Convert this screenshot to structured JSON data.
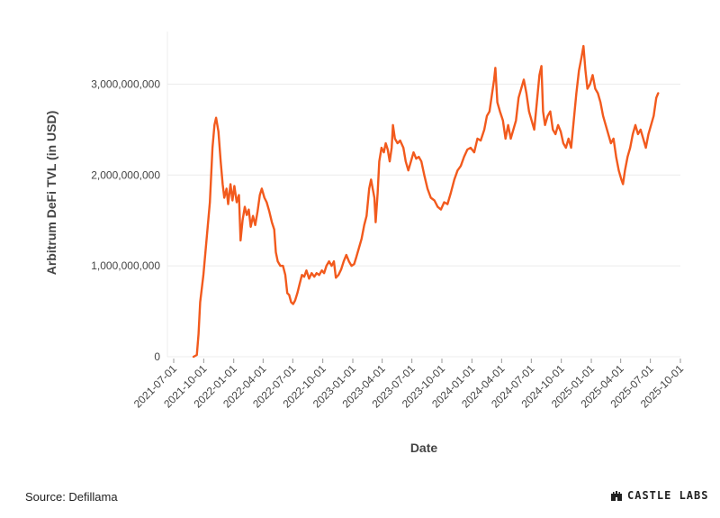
{
  "chart_data": {
    "type": "line",
    "title": "",
    "xlabel": "Date",
    "ylabel": "Arbitrum DeFi TVL (in USD)",
    "xlim": [
      "2021-07-01",
      "2025-10-01"
    ],
    "ylim": [
      0,
      3500000000
    ],
    "x_ticks": [
      "2021-07-01",
      "2021-10-01",
      "2022-01-01",
      "2022-04-01",
      "2022-07-01",
      "2022-10-01",
      "2023-01-01",
      "2023-04-01",
      "2023-07-01",
      "2023-10-01",
      "2024-01-01",
      "2024-04-01",
      "2024-07-01",
      "2024-10-01",
      "2025-01-01",
      "2025-04-01",
      "2025-07-01",
      "2025-10-01"
    ],
    "y_ticks": [
      0,
      1000000000,
      2000000000,
      3000000000
    ],
    "y_tick_labels": [
      "0",
      "1,000,000,000",
      "2,000,000,000",
      "3,000,000,000"
    ],
    "grid": true,
    "series": [
      {
        "color": "#f25a1d",
        "points": [
          [
            "2021-08-31",
            0
          ],
          [
            "2021-09-10",
            20000000
          ],
          [
            "2021-09-15",
            250000000
          ],
          [
            "2021-09-20",
            600000000
          ],
          [
            "2021-09-30",
            900000000
          ],
          [
            "2021-10-10",
            1300000000
          ],
          [
            "2021-10-20",
            1700000000
          ],
          [
            "2021-10-28",
            2300000000
          ],
          [
            "2021-11-03",
            2550000000
          ],
          [
            "2021-11-08",
            2630000000
          ],
          [
            "2021-11-15",
            2480000000
          ],
          [
            "2021-11-22",
            2150000000
          ],
          [
            "2021-11-28",
            1900000000
          ],
          [
            "2021-12-03",
            1750000000
          ],
          [
            "2021-12-10",
            1850000000
          ],
          [
            "2021-12-15",
            1680000000
          ],
          [
            "2021-12-22",
            1900000000
          ],
          [
            "2021-12-28",
            1720000000
          ],
          [
            "2022-01-03",
            1880000000
          ],
          [
            "2022-01-10",
            1700000000
          ],
          [
            "2022-01-17",
            1780000000
          ],
          [
            "2022-01-22",
            1280000000
          ],
          [
            "2022-01-28",
            1500000000
          ],
          [
            "2022-02-04",
            1650000000
          ],
          [
            "2022-02-10",
            1560000000
          ],
          [
            "2022-02-16",
            1620000000
          ],
          [
            "2022-02-22",
            1430000000
          ],
          [
            "2022-03-01",
            1550000000
          ],
          [
            "2022-03-08",
            1450000000
          ],
          [
            "2022-03-15",
            1600000000
          ],
          [
            "2022-03-22",
            1780000000
          ],
          [
            "2022-03-28",
            1850000000
          ],
          [
            "2022-04-05",
            1750000000
          ],
          [
            "2022-04-12",
            1700000000
          ],
          [
            "2022-04-20",
            1600000000
          ],
          [
            "2022-04-28",
            1480000000
          ],
          [
            "2022-05-05",
            1400000000
          ],
          [
            "2022-05-10",
            1150000000
          ],
          [
            "2022-05-16",
            1050000000
          ],
          [
            "2022-05-24",
            1000000000
          ],
          [
            "2022-06-01",
            1000000000
          ],
          [
            "2022-06-08",
            900000000
          ],
          [
            "2022-06-14",
            700000000
          ],
          [
            "2022-06-20",
            680000000
          ],
          [
            "2022-06-26",
            600000000
          ],
          [
            "2022-07-02",
            580000000
          ],
          [
            "2022-07-08",
            620000000
          ],
          [
            "2022-07-15",
            700000000
          ],
          [
            "2022-07-22",
            800000000
          ],
          [
            "2022-07-29",
            900000000
          ],
          [
            "2022-08-05",
            880000000
          ],
          [
            "2022-08-12",
            950000000
          ],
          [
            "2022-08-20",
            860000000
          ],
          [
            "2022-08-28",
            920000000
          ],
          [
            "2022-09-05",
            880000000
          ],
          [
            "2022-09-12",
            920000000
          ],
          [
            "2022-09-20",
            900000000
          ],
          [
            "2022-09-28",
            950000000
          ],
          [
            "2022-10-05",
            920000000
          ],
          [
            "2022-10-12",
            1000000000
          ],
          [
            "2022-10-20",
            1050000000
          ],
          [
            "2022-10-28",
            1000000000
          ],
          [
            "2022-11-04",
            1050000000
          ],
          [
            "2022-11-10",
            870000000
          ],
          [
            "2022-11-18",
            900000000
          ],
          [
            "2022-11-26",
            960000000
          ],
          [
            "2022-12-04",
            1050000000
          ],
          [
            "2022-12-12",
            1120000000
          ],
          [
            "2022-12-20",
            1050000000
          ],
          [
            "2022-12-28",
            1000000000
          ],
          [
            "2023-01-05",
            1020000000
          ],
          [
            "2023-01-12",
            1100000000
          ],
          [
            "2023-01-20",
            1200000000
          ],
          [
            "2023-01-28",
            1300000000
          ],
          [
            "2023-02-05",
            1450000000
          ],
          [
            "2023-02-12",
            1550000000
          ],
          [
            "2023-02-20",
            1850000000
          ],
          [
            "2023-02-26",
            1950000000
          ],
          [
            "2023-03-03",
            1850000000
          ],
          [
            "2023-03-08",
            1750000000
          ],
          [
            "2023-03-12",
            1480000000
          ],
          [
            "2023-03-18",
            1800000000
          ],
          [
            "2023-03-23",
            2150000000
          ],
          [
            "2023-03-30",
            2300000000
          ],
          [
            "2023-04-06",
            2250000000
          ],
          [
            "2023-04-12",
            2350000000
          ],
          [
            "2023-04-18",
            2280000000
          ],
          [
            "2023-04-24",
            2150000000
          ],
          [
            "2023-04-30",
            2300000000
          ],
          [
            "2023-05-04",
            2550000000
          ],
          [
            "2023-05-10",
            2400000000
          ],
          [
            "2023-05-18",
            2350000000
          ],
          [
            "2023-05-26",
            2380000000
          ],
          [
            "2023-06-05",
            2300000000
          ],
          [
            "2023-06-12",
            2150000000
          ],
          [
            "2023-06-20",
            2050000000
          ],
          [
            "2023-06-28",
            2150000000
          ],
          [
            "2023-07-06",
            2250000000
          ],
          [
            "2023-07-14",
            2180000000
          ],
          [
            "2023-07-22",
            2200000000
          ],
          [
            "2023-07-30",
            2150000000
          ],
          [
            "2023-08-08",
            2000000000
          ],
          [
            "2023-08-18",
            1850000000
          ],
          [
            "2023-08-28",
            1750000000
          ],
          [
            "2023-09-08",
            1720000000
          ],
          [
            "2023-09-18",
            1650000000
          ],
          [
            "2023-09-28",
            1620000000
          ],
          [
            "2023-10-08",
            1700000000
          ],
          [
            "2023-10-18",
            1680000000
          ],
          [
            "2023-10-28",
            1800000000
          ],
          [
            "2023-11-08",
            1950000000
          ],
          [
            "2023-11-18",
            2050000000
          ],
          [
            "2023-11-28",
            2100000000
          ],
          [
            "2023-12-08",
            2200000000
          ],
          [
            "2023-12-18",
            2280000000
          ],
          [
            "2023-12-28",
            2300000000
          ],
          [
            "2024-01-08",
            2250000000
          ],
          [
            "2024-01-18",
            2400000000
          ],
          [
            "2024-01-28",
            2380000000
          ],
          [
            "2024-02-08",
            2500000000
          ],
          [
            "2024-02-16",
            2650000000
          ],
          [
            "2024-02-24",
            2700000000
          ],
          [
            "2024-03-03",
            2900000000
          ],
          [
            "2024-03-09",
            3050000000
          ],
          [
            "2024-03-13",
            3180000000
          ],
          [
            "2024-03-19",
            2800000000
          ],
          [
            "2024-03-27",
            2700000000
          ],
          [
            "2024-04-05",
            2600000000
          ],
          [
            "2024-04-13",
            2400000000
          ],
          [
            "2024-04-21",
            2550000000
          ],
          [
            "2024-04-29",
            2400000000
          ],
          [
            "2024-05-07",
            2500000000
          ],
          [
            "2024-05-15",
            2600000000
          ],
          [
            "2024-05-23",
            2850000000
          ],
          [
            "2024-05-31",
            2950000000
          ],
          [
            "2024-06-08",
            3050000000
          ],
          [
            "2024-06-16",
            2900000000
          ],
          [
            "2024-06-24",
            2700000000
          ],
          [
            "2024-07-02",
            2600000000
          ],
          [
            "2024-07-10",
            2500000000
          ],
          [
            "2024-07-18",
            2800000000
          ],
          [
            "2024-07-26",
            3100000000
          ],
          [
            "2024-08-01",
            3200000000
          ],
          [
            "2024-08-06",
            2700000000
          ],
          [
            "2024-08-12",
            2550000000
          ],
          [
            "2024-08-20",
            2650000000
          ],
          [
            "2024-08-28",
            2700000000
          ],
          [
            "2024-09-05",
            2500000000
          ],
          [
            "2024-09-13",
            2450000000
          ],
          [
            "2024-09-21",
            2550000000
          ],
          [
            "2024-09-29",
            2480000000
          ],
          [
            "2024-10-07",
            2350000000
          ],
          [
            "2024-10-15",
            2300000000
          ],
          [
            "2024-10-23",
            2400000000
          ],
          [
            "2024-10-31",
            2300000000
          ],
          [
            "2024-11-08",
            2600000000
          ],
          [
            "2024-11-16",
            2900000000
          ],
          [
            "2024-11-24",
            3150000000
          ],
          [
            "2024-12-02",
            3300000000
          ],
          [
            "2024-12-08",
            3420000000
          ],
          [
            "2024-12-14",
            3150000000
          ],
          [
            "2024-12-20",
            2950000000
          ],
          [
            "2024-12-28",
            3000000000
          ],
          [
            "2025-01-05",
            3100000000
          ],
          [
            "2025-01-13",
            2950000000
          ],
          [
            "2025-01-21",
            2900000000
          ],
          [
            "2025-01-29",
            2800000000
          ],
          [
            "2025-02-06",
            2650000000
          ],
          [
            "2025-02-14",
            2550000000
          ],
          [
            "2025-02-22",
            2450000000
          ],
          [
            "2025-03-02",
            2350000000
          ],
          [
            "2025-03-10",
            2400000000
          ],
          [
            "2025-03-18",
            2200000000
          ],
          [
            "2025-03-26",
            2050000000
          ],
          [
            "2025-04-03",
            1950000000
          ],
          [
            "2025-04-08",
            1900000000
          ],
          [
            "2025-04-14",
            2050000000
          ],
          [
            "2025-04-22",
            2200000000
          ],
          [
            "2025-04-30",
            2300000000
          ],
          [
            "2025-05-08",
            2450000000
          ],
          [
            "2025-05-16",
            2550000000
          ],
          [
            "2025-05-24",
            2450000000
          ],
          [
            "2025-06-01",
            2500000000
          ],
          [
            "2025-06-09",
            2400000000
          ],
          [
            "2025-06-17",
            2300000000
          ],
          [
            "2025-06-25",
            2450000000
          ],
          [
            "2025-07-03",
            2550000000
          ],
          [
            "2025-07-11",
            2650000000
          ],
          [
            "2025-07-19",
            2850000000
          ],
          [
            "2025-07-25",
            2900000000
          ]
        ]
      }
    ]
  },
  "footer": {
    "source": "Source: Defillama",
    "brand": "CASTLE LABS",
    "brand_icon": "castle-icon"
  }
}
